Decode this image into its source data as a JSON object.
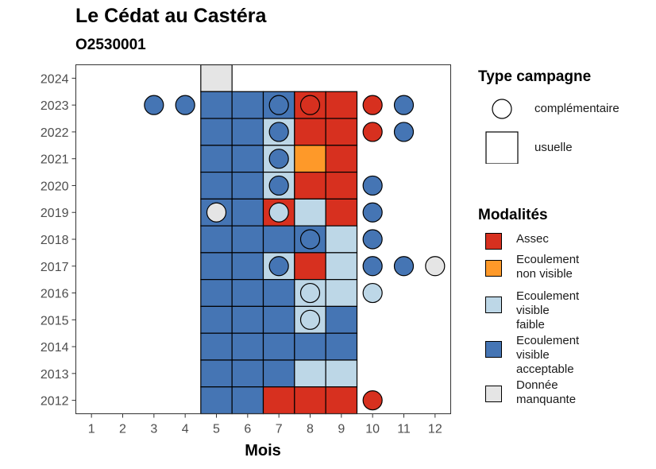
{
  "chart_data": {
    "type": "heatmap",
    "title": "Le Cédat au Castéra",
    "subtitle": "O2530001",
    "xlabel": "Mois",
    "ylabel": "",
    "x_ticks": [
      "1",
      "2",
      "3",
      "4",
      "5",
      "6",
      "7",
      "8",
      "9",
      "10",
      "11",
      "12"
    ],
    "y_ticks": [
      "2012",
      "2013",
      "2014",
      "2015",
      "2016",
      "2017",
      "2018",
      "2019",
      "2020",
      "2021",
      "2022",
      "2023",
      "2024"
    ],
    "xlim": [
      0.5,
      12.5
    ],
    "ylim": [
      2011.5,
      2024.5
    ],
    "grid": false,
    "legend_position": "right",
    "colors": {
      "assec": "#d7301f",
      "ecoulement_non_visible": "#fe9929",
      "ecoulement_visible_faible": "#bdd7e7",
      "ecoulement_visible_acceptable": "#4575b4",
      "donnee_manquante": "#e5e5e5"
    },
    "usuelle": [
      {
        "year": 2024,
        "month": 5,
        "value": "donnee_manquante"
      },
      {
        "year": 2023,
        "month": 5,
        "value": "ecoulement_visible_acceptable"
      },
      {
        "year": 2023,
        "month": 6,
        "value": "ecoulement_visible_acceptable"
      },
      {
        "year": 2023,
        "month": 7,
        "value": "ecoulement_visible_acceptable"
      },
      {
        "year": 2023,
        "month": 8,
        "value": "assec"
      },
      {
        "year": 2023,
        "month": 9,
        "value": "assec"
      },
      {
        "year": 2022,
        "month": 5,
        "value": "ecoulement_visible_acceptable"
      },
      {
        "year": 2022,
        "month": 6,
        "value": "ecoulement_visible_acceptable"
      },
      {
        "year": 2022,
        "month": 7,
        "value": "ecoulement_visible_faible"
      },
      {
        "year": 2022,
        "month": 8,
        "value": "assec"
      },
      {
        "year": 2022,
        "month": 9,
        "value": "assec"
      },
      {
        "year": 2021,
        "month": 5,
        "value": "ecoulement_visible_acceptable"
      },
      {
        "year": 2021,
        "month": 6,
        "value": "ecoulement_visible_acceptable"
      },
      {
        "year": 2021,
        "month": 7,
        "value": "ecoulement_visible_faible"
      },
      {
        "year": 2021,
        "month": 8,
        "value": "ecoulement_non_visible"
      },
      {
        "year": 2021,
        "month": 9,
        "value": "assec"
      },
      {
        "year": 2020,
        "month": 5,
        "value": "ecoulement_visible_acceptable"
      },
      {
        "year": 2020,
        "month": 6,
        "value": "ecoulement_visible_acceptable"
      },
      {
        "year": 2020,
        "month": 7,
        "value": "ecoulement_visible_faible"
      },
      {
        "year": 2020,
        "month": 8,
        "value": "assec"
      },
      {
        "year": 2020,
        "month": 9,
        "value": "assec"
      },
      {
        "year": 2019,
        "month": 5,
        "value": "ecoulement_visible_acceptable"
      },
      {
        "year": 2019,
        "month": 6,
        "value": "ecoulement_visible_acceptable"
      },
      {
        "year": 2019,
        "month": 7,
        "value": "assec"
      },
      {
        "year": 2019,
        "month": 8,
        "value": "ecoulement_visible_faible"
      },
      {
        "year": 2019,
        "month": 9,
        "value": "assec"
      },
      {
        "year": 2018,
        "month": 5,
        "value": "ecoulement_visible_acceptable"
      },
      {
        "year": 2018,
        "month": 6,
        "value": "ecoulement_visible_acceptable"
      },
      {
        "year": 2018,
        "month": 7,
        "value": "ecoulement_visible_acceptable"
      },
      {
        "year": 2018,
        "month": 8,
        "value": "ecoulement_visible_acceptable"
      },
      {
        "year": 2018,
        "month": 9,
        "value": "ecoulement_visible_faible"
      },
      {
        "year": 2017,
        "month": 5,
        "value": "ecoulement_visible_acceptable"
      },
      {
        "year": 2017,
        "month": 6,
        "value": "ecoulement_visible_acceptable"
      },
      {
        "year": 2017,
        "month": 7,
        "value": "ecoulement_visible_faible"
      },
      {
        "year": 2017,
        "month": 8,
        "value": "assec"
      },
      {
        "year": 2017,
        "month": 9,
        "value": "ecoulement_visible_faible"
      },
      {
        "year": 2016,
        "month": 5,
        "value": "ecoulement_visible_acceptable"
      },
      {
        "year": 2016,
        "month": 6,
        "value": "ecoulement_visible_acceptable"
      },
      {
        "year": 2016,
        "month": 7,
        "value": "ecoulement_visible_acceptable"
      },
      {
        "year": 2016,
        "month": 8,
        "value": "ecoulement_visible_faible"
      },
      {
        "year": 2016,
        "month": 9,
        "value": "ecoulement_visible_faible"
      },
      {
        "year": 2015,
        "month": 5,
        "value": "ecoulement_visible_acceptable"
      },
      {
        "year": 2015,
        "month": 6,
        "value": "ecoulement_visible_acceptable"
      },
      {
        "year": 2015,
        "month": 7,
        "value": "ecoulement_visible_acceptable"
      },
      {
        "year": 2015,
        "month": 8,
        "value": "ecoulement_visible_faible"
      },
      {
        "year": 2015,
        "month": 9,
        "value": "ecoulement_visible_acceptable"
      },
      {
        "year": 2014,
        "month": 5,
        "value": "ecoulement_visible_acceptable"
      },
      {
        "year": 2014,
        "month": 6,
        "value": "ecoulement_visible_acceptable"
      },
      {
        "year": 2014,
        "month": 7,
        "value": "ecoulement_visible_acceptable"
      },
      {
        "year": 2014,
        "month": 8,
        "value": "ecoulement_visible_acceptable"
      },
      {
        "year": 2014,
        "month": 9,
        "value": "ecoulement_visible_acceptable"
      },
      {
        "year": 2013,
        "month": 5,
        "value": "ecoulement_visible_acceptable"
      },
      {
        "year": 2013,
        "month": 6,
        "value": "ecoulement_visible_acceptable"
      },
      {
        "year": 2013,
        "month": 7,
        "value": "ecoulement_visible_acceptable"
      },
      {
        "year": 2013,
        "month": 8,
        "value": "ecoulement_visible_faible"
      },
      {
        "year": 2013,
        "month": 9,
        "value": "ecoulement_visible_faible"
      },
      {
        "year": 2012,
        "month": 5,
        "value": "ecoulement_visible_acceptable"
      },
      {
        "year": 2012,
        "month": 6,
        "value": "ecoulement_visible_acceptable"
      },
      {
        "year": 2012,
        "month": 7,
        "value": "assec"
      },
      {
        "year": 2012,
        "month": 8,
        "value": "assec"
      },
      {
        "year": 2012,
        "month": 9,
        "value": "assec"
      }
    ],
    "complementaire": [
      {
        "year": 2023,
        "month": 3,
        "value": "ecoulement_visible_acceptable"
      },
      {
        "year": 2023,
        "month": 4,
        "value": "ecoulement_visible_acceptable"
      },
      {
        "year": 2023,
        "month": 7,
        "value": "ecoulement_visible_acceptable"
      },
      {
        "year": 2023,
        "month": 8,
        "value": "assec"
      },
      {
        "year": 2023,
        "month": 10,
        "value": "assec"
      },
      {
        "year": 2023,
        "month": 11,
        "value": "ecoulement_visible_acceptable"
      },
      {
        "year": 2022,
        "month": 7,
        "value": "ecoulement_visible_acceptable"
      },
      {
        "year": 2022,
        "month": 10,
        "value": "assec"
      },
      {
        "year": 2022,
        "month": 11,
        "value": "ecoulement_visible_acceptable"
      },
      {
        "year": 2021,
        "month": 7,
        "value": "ecoulement_visible_acceptable"
      },
      {
        "year": 2020,
        "month": 7,
        "value": "ecoulement_visible_acceptable"
      },
      {
        "year": 2020,
        "month": 10,
        "value": "ecoulement_visible_acceptable"
      },
      {
        "year": 2019,
        "month": 5,
        "value": "donnee_manquante"
      },
      {
        "year": 2019,
        "month": 7,
        "value": "ecoulement_visible_faible"
      },
      {
        "year": 2019,
        "month": 10,
        "value": "ecoulement_visible_acceptable"
      },
      {
        "year": 2018,
        "month": 8,
        "value": "ecoulement_visible_acceptable"
      },
      {
        "year": 2018,
        "month": 10,
        "value": "ecoulement_visible_acceptable"
      },
      {
        "year": 2017,
        "month": 7,
        "value": "ecoulement_visible_acceptable"
      },
      {
        "year": 2017,
        "month": 10,
        "value": "ecoulement_visible_acceptable"
      },
      {
        "year": 2017,
        "month": 11,
        "value": "ecoulement_visible_acceptable"
      },
      {
        "year": 2017,
        "month": 12,
        "value": "donnee_manquante"
      },
      {
        "year": 2016,
        "month": 8,
        "value": "ecoulement_visible_faible"
      },
      {
        "year": 2016,
        "month": 10,
        "value": "ecoulement_visible_faible"
      },
      {
        "year": 2015,
        "month": 8,
        "value": "ecoulement_visible_faible"
      },
      {
        "year": 2012,
        "month": 10,
        "value": "assec"
      }
    ],
    "legend": {
      "type_title": "Type campagne",
      "type_items": [
        {
          "shape": "circle",
          "label": "complémentaire"
        },
        {
          "shape": "square",
          "label": "usuelle"
        }
      ],
      "mod_title": "Modalités",
      "mod_items": [
        {
          "key": "assec",
          "label_lines": [
            "Assec"
          ]
        },
        {
          "key": "ecoulement_non_visible",
          "label_lines": [
            "Ecoulement",
            "non visible"
          ]
        },
        {
          "key": "ecoulement_visible_faible",
          "label_lines": [
            "Ecoulement",
            "visible",
            "faible"
          ]
        },
        {
          "key": "ecoulement_visible_acceptable",
          "label_lines": [
            "Ecoulement",
            "visible",
            "acceptable"
          ]
        },
        {
          "key": "donnee_manquante",
          "label_lines": [
            "Donnée",
            "manquante"
          ]
        }
      ]
    }
  }
}
